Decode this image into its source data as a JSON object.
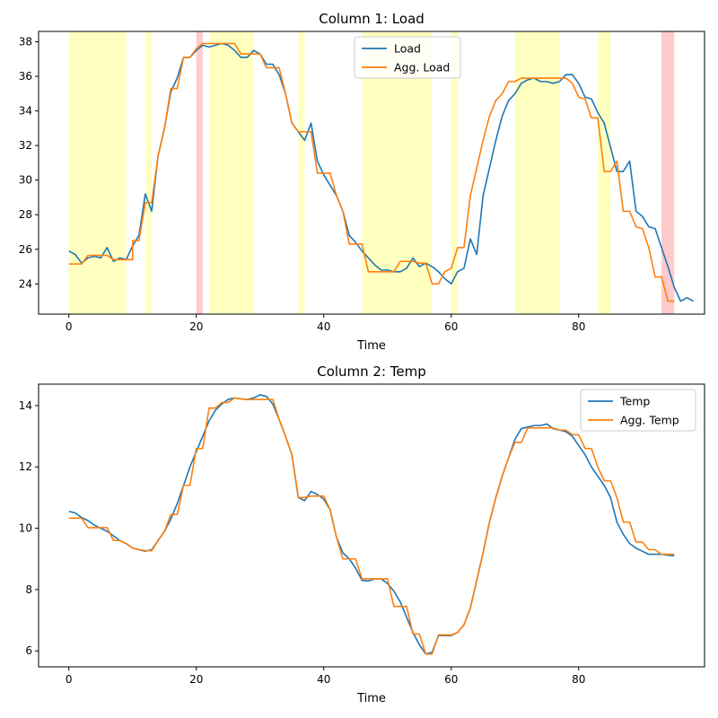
{
  "colors": {
    "load": "#1f77b4",
    "agg": "#ff7f0e",
    "highlight_yellow": "#ffffc0",
    "highlight_red": "#ffcaca"
  },
  "chart_data": [
    {
      "type": "line",
      "title": "Column 1: Load",
      "xlabel": "Time",
      "ylabel": "",
      "xlim": [
        -4.75,
        99.75
      ],
      "ylim": [
        22.25,
        38.6
      ],
      "xticks": [
        0,
        20,
        40,
        60,
        80
      ],
      "yticks": [
        24,
        26,
        28,
        30,
        32,
        34,
        36,
        38
      ],
      "legend_position": "top-center",
      "grid": false,
      "highlights_yellow": [
        [
          0,
          9
        ],
        [
          12,
          13
        ],
        [
          22,
          29
        ],
        [
          36,
          37
        ],
        [
          46,
          57
        ],
        [
          60,
          61
        ],
        [
          70,
          77
        ],
        [
          83,
          85
        ]
      ],
      "highlights_red": [
        [
          20,
          21
        ],
        [
          93,
          95
        ]
      ],
      "series": [
        {
          "name": "Load",
          "color": "#1f77b4",
          "values": [
            25.9,
            25.7,
            25.2,
            25.5,
            25.6,
            25.5,
            26.1,
            25.3,
            25.5,
            25.4,
            26.2,
            26.8,
            29.2,
            28.2,
            31.4,
            33.0,
            35.1,
            35.9,
            37.1,
            37.1,
            37.5,
            37.8,
            37.7,
            37.8,
            37.9,
            37.8,
            37.5,
            37.1,
            37.1,
            37.5,
            37.3,
            36.7,
            36.7,
            36.1,
            35.0,
            33.3,
            32.8,
            32.3,
            33.3,
            31.1,
            30.3,
            29.7,
            29.1,
            28.2,
            26.8,
            26.4,
            25.9,
            25.5,
            25.1,
            24.8,
            24.8,
            24.7,
            24.7,
            24.9,
            25.5,
            25.0,
            25.2,
            25.0,
            24.7,
            24.3,
            24.0,
            24.7,
            24.9,
            26.6,
            25.7,
            29.1,
            30.7,
            32.3,
            33.7,
            34.6,
            35.0,
            35.6,
            35.8,
            35.9,
            35.7,
            35.7,
            35.6,
            35.7,
            36.1,
            36.1,
            35.6,
            34.8,
            34.7,
            33.9,
            33.3,
            31.9,
            30.5,
            30.5,
            31.1,
            28.2,
            27.9,
            27.3,
            27.2,
            26.1,
            25.0,
            23.8,
            23.0,
            23.2,
            23.0
          ]
        },
        {
          "name": "Agg. Load",
          "color": "#ff7f0e",
          "steps": [
            [
              0,
              2,
              25.15
            ],
            [
              3,
              6,
              25.65
            ],
            [
              7,
              10,
              25.4
            ],
            [
              10,
              11,
              26.5
            ],
            [
              12,
              13,
              28.7
            ],
            [
              14,
              14,
              31.4
            ],
            [
              15,
              15,
              33.0
            ],
            [
              16,
              17,
              35.3
            ],
            [
              18,
              19,
              37.1
            ],
            [
              20,
              20,
              37.6
            ],
            [
              21,
              22,
              37.9
            ],
            [
              23,
              26,
              37.9
            ],
            [
              27,
              30,
              37.3
            ],
            [
              31,
              33,
              36.5
            ],
            [
              34,
              34,
              35.0
            ],
            [
              35,
              35,
              33.3
            ],
            [
              36,
              38,
              32.8
            ],
            [
              39,
              41,
              30.4
            ],
            [
              42,
              42,
              29.1
            ],
            [
              43,
              43,
              28.2
            ],
            [
              44,
              46,
              26.3
            ],
            [
              47,
              51,
              24.7
            ],
            [
              52,
              53,
              25.3
            ],
            [
              54,
              54,
              25.3
            ],
            [
              55,
              55,
              25.2
            ],
            [
              56,
              56,
              25.2
            ],
            [
              57,
              57,
              24.0
            ],
            [
              58,
              58,
              24.0
            ],
            [
              59,
              59,
              24.7
            ],
            [
              60,
              60,
              24.9
            ],
            [
              61,
              62,
              26.1
            ],
            [
              63,
              63,
              29.1
            ],
            [
              64,
              64,
              30.7
            ],
            [
              65,
              65,
              32.3
            ],
            [
              66,
              66,
              33.7
            ],
            [
              67,
              67,
              34.6
            ],
            [
              68,
              68,
              35.0
            ],
            [
              69,
              70,
              35.7
            ],
            [
              71,
              78,
              35.9
            ],
            [
              79,
              79,
              35.6
            ],
            [
              80,
              80,
              34.8
            ],
            [
              81,
              81,
              34.7
            ],
            [
              82,
              82,
              33.6
            ],
            [
              83,
              83,
              33.6
            ],
            [
              84,
              85,
              30.5
            ],
            [
              86,
              86,
              31.1
            ],
            [
              87,
              87,
              28.2
            ],
            [
              88,
              88,
              28.2
            ],
            [
              89,
              89,
              27.3
            ],
            [
              90,
              90,
              27.2
            ],
            [
              91,
              91,
              26.1
            ],
            [
              92,
              93,
              24.4
            ],
            [
              94,
              95,
              23.0
            ]
          ]
        }
      ]
    },
    {
      "type": "line",
      "title": "Column 2: Temp",
      "xlabel": "Time",
      "ylabel": "",
      "xlim": [
        -4.75,
        99.75
      ],
      "ylim": [
        5.48,
        14.7
      ],
      "xticks": [
        0,
        20,
        40,
        60,
        80
      ],
      "yticks": [
        6,
        8,
        10,
        12,
        14
      ],
      "legend_position": "top-right",
      "grid": false,
      "series": [
        {
          "name": "Temp",
          "color": "#1f77b4",
          "values": [
            10.55,
            10.5,
            10.35,
            10.25,
            10.1,
            10.0,
            9.9,
            9.75,
            9.6,
            9.5,
            9.35,
            9.3,
            9.25,
            9.3,
            9.6,
            9.9,
            10.3,
            10.8,
            11.4,
            12.0,
            12.5,
            13.0,
            13.5,
            13.85,
            14.05,
            14.2,
            14.25,
            14.22,
            14.2,
            14.25,
            14.35,
            14.3,
            14.05,
            13.55,
            13.0,
            12.4,
            11.0,
            10.9,
            11.2,
            11.1,
            10.95,
            10.6,
            9.7,
            9.2,
            9.0,
            8.7,
            8.3,
            8.28,
            8.35,
            8.35,
            8.2,
            7.95,
            7.6,
            7.1,
            6.6,
            6.2,
            5.9,
            5.95,
            6.5,
            6.5,
            6.5,
            6.6,
            6.85,
            7.4,
            8.3,
            9.2,
            10.2,
            11.0,
            11.7,
            12.3,
            12.9,
            13.25,
            13.3,
            13.35,
            13.35,
            13.4,
            13.25,
            13.2,
            13.15,
            13.0,
            12.7,
            12.4,
            12.0,
            11.7,
            11.4,
            11.0,
            10.2,
            9.8,
            9.5,
            9.35,
            9.25,
            9.15,
            9.15,
            9.15,
            9.12,
            9.1
          ]
        },
        {
          "name": "Agg. Temp",
          "color": "#ff7f0e",
          "steps": [
            [
              0,
              2,
              10.33
            ],
            [
              3,
              6,
              10.02
            ],
            [
              7,
              8,
              9.6
            ],
            [
              9,
              9,
              9.5
            ],
            [
              10,
              10,
              9.35
            ],
            [
              11,
              11,
              9.3
            ],
            [
              12,
              13,
              9.27
            ],
            [
              14,
              14,
              9.6
            ],
            [
              15,
              15,
              9.9
            ],
            [
              16,
              17,
              10.45
            ],
            [
              18,
              19,
              11.4
            ],
            [
              20,
              21,
              12.6
            ],
            [
              22,
              23,
              13.92
            ],
            [
              24,
              25,
              14.1
            ],
            [
              26,
              26,
              14.25
            ],
            [
              27,
              27,
              14.22
            ],
            [
              28,
              28,
              14.2
            ],
            [
              29,
              32,
              14.2
            ],
            [
              33,
              33,
              13.55
            ],
            [
              34,
              34,
              13.0
            ],
            [
              35,
              35,
              12.4
            ],
            [
              36,
              37,
              11.0
            ],
            [
              38,
              40,
              11.05
            ],
            [
              41,
              41,
              10.6
            ],
            [
              42,
              42,
              9.7
            ],
            [
              43,
              45,
              9.0
            ],
            [
              46,
              46,
              8.35
            ],
            [
              47,
              50,
              8.35
            ],
            [
              51,
              53,
              7.45
            ],
            [
              54,
              55,
              6.55
            ],
            [
              56,
              57,
              5.9
            ],
            [
              58,
              60,
              6.52
            ],
            [
              61,
              61,
              6.6
            ],
            [
              62,
              62,
              6.85
            ],
            [
              63,
              63,
              7.4
            ],
            [
              64,
              64,
              8.3
            ],
            [
              65,
              65,
              9.2
            ],
            [
              66,
              66,
              10.2
            ],
            [
              67,
              67,
              11.0
            ],
            [
              68,
              68,
              11.7
            ],
            [
              69,
              69,
              12.3
            ],
            [
              70,
              71,
              12.8
            ],
            [
              72,
              76,
              13.27
            ],
            [
              77,
              78,
              13.2
            ],
            [
              79,
              80,
              13.05
            ],
            [
              81,
              82,
              12.6
            ],
            [
              83,
              83,
              12.0
            ],
            [
              84,
              85,
              11.55
            ],
            [
              86,
              86,
              11.0
            ],
            [
              87,
              88,
              10.2
            ],
            [
              89,
              90,
              9.55
            ],
            [
              91,
              92,
              9.3
            ],
            [
              93,
              95,
              9.15
            ]
          ]
        }
      ]
    }
  ]
}
